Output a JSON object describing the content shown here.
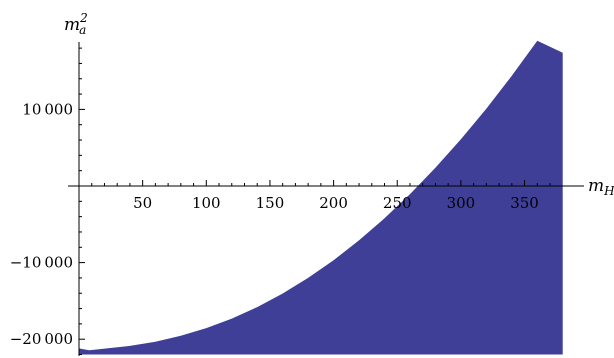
{
  "chart_data": {
    "type": "area",
    "xlabel": "m",
    "xlabel_sub": "H",
    "ylabel": "m",
    "ylabel_sup": "2",
    "ylabel_sub": "a",
    "xlim": [
      -10,
      385
    ],
    "ylim": [
      -22000,
      18500
    ],
    "x_ticks": [
      50,
      100,
      150,
      200,
      250,
      300,
      350
    ],
    "x_tick_labels": [
      "50",
      "100",
      "150",
      "200",
      "250",
      "300",
      "350"
    ],
    "x_minor_step": 10,
    "y_ticks": [
      10000,
      -10000,
      -20000
    ],
    "y_tick_labels": [
      "10 000",
      "−10 000",
      "−20 000"
    ],
    "y_minor_step": 2000,
    "fill_color": "#3f3f98",
    "grid": false,
    "series": [
      {
        "x": [
          0,
          4,
          8,
          12,
          20,
          40,
          60,
          80,
          100,
          120,
          140,
          160,
          180,
          200,
          220,
          240,
          260,
          280,
          300,
          320,
          340,
          360,
          380
        ],
        "upper": [
          -21200,
          -21330,
          -21450,
          -21380,
          -21230,
          -20870,
          -20320,
          -19550,
          -18550,
          -17310,
          -15810,
          -14040,
          -12000,
          -9690,
          -7090,
          -4220,
          -1060,
          2380,
          6100,
          10100,
          14380,
          18950,
          17400
        ],
        "lower": -22000
      }
    ]
  }
}
